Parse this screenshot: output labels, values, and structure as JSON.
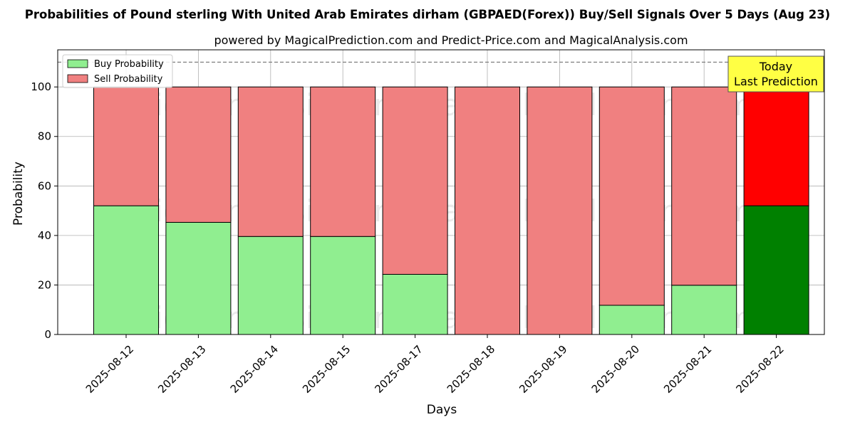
{
  "chart_data": {
    "type": "bar",
    "stacked": true,
    "title": "Probabilities of Pound sterling With United Arab Emirates dirham (GBPAED(Forex)) Buy/Sell Signals Over 5 Days (Aug 23)",
    "subtitle": "powered by MagicalPrediction.com and Predict-Price.com and MagicalAnalysis.com",
    "xlabel": "Days",
    "ylabel": "Probability",
    "ylim": [
      0,
      115
    ],
    "yticks": [
      0,
      20,
      40,
      60,
      80,
      100
    ],
    "grid": true,
    "categories": [
      "2025-08-12",
      "2025-08-13",
      "2025-08-14",
      "2025-08-15",
      "2025-08-17",
      "2025-08-18",
      "2025-08-19",
      "2025-08-20",
      "2025-08-21",
      "2025-08-22"
    ],
    "series": [
      {
        "name": "Buy Probability",
        "values": [
          52,
          45.3,
          39.6,
          39.6,
          24.3,
          0,
          0,
          11.8,
          19.9,
          52
        ],
        "color": "#90ee90",
        "highlight_color": "#008000"
      },
      {
        "name": "Sell Probability",
        "values": [
          48,
          54.7,
          60.4,
          60.4,
          75.7,
          100,
          100,
          88.2,
          80.1,
          48
        ],
        "color": "#f08080",
        "highlight_color": "#ff0000"
      }
    ],
    "highlight_index": 9,
    "reference_line": {
      "y": 110,
      "style": "dashed",
      "color": "#808080"
    },
    "legend": {
      "placement": "top-left",
      "entries": [
        "Buy Probability",
        "Sell Probability"
      ]
    },
    "annotation": {
      "lines": [
        "Today",
        "Last Prediction"
      ],
      "background": "#ffff44"
    },
    "watermarks": [
      "MagicalAnalysis.com",
      "MagicalPrediction.com"
    ]
  }
}
